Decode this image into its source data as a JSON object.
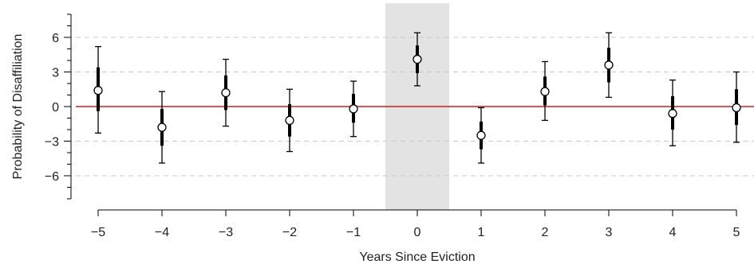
{
  "chart_data": {
    "type": "scatter",
    "title": "",
    "xlabel": "Years Since Eviction",
    "ylabel": "Probability of Disaffiliation",
    "xlim": [
      -5.3,
      5.3
    ],
    "ylim": [
      -8.6,
      8.6
    ],
    "x_ticks": [
      -5,
      -4,
      -3,
      -2,
      -1,
      0,
      1,
      2,
      3,
      4,
      5
    ],
    "x_tick_labels": [
      "−5",
      "−4",
      "−3",
      "−2",
      "−1",
      "0",
      "1",
      "2",
      "3",
      "4",
      "5"
    ],
    "y_ticks_labeled": [
      -6,
      -3,
      0,
      3,
      6
    ],
    "y_tick_labels": [
      "−6",
      "−3",
      "0",
      "3",
      "6"
    ],
    "y_ticks_minor": [
      -8,
      -7,
      -5,
      -4,
      -2,
      -1,
      1,
      2,
      4,
      5,
      7,
      8
    ],
    "grid_lines_y": [
      -6,
      -3,
      3,
      6
    ],
    "reference_line_y": 0,
    "highlight_x_range": [
      -0.5,
      0.5
    ],
    "colors": {
      "reference_line": "#cc1f1f",
      "highlight": "#e3e3e3",
      "grid": "#c8c8c8",
      "marks": "#000000"
    },
    "points": [
      {
        "x": -5,
        "y": 1.4,
        "ci95": [
          -2.3,
          5.2
        ],
        "ci90": [
          -0.4,
          3.4
        ]
      },
      {
        "x": -4,
        "y": -1.8,
        "ci95": [
          -4.9,
          1.3
        ],
        "ci90": [
          -3.4,
          -0.2
        ]
      },
      {
        "x": -3,
        "y": 1.2,
        "ci95": [
          -1.7,
          4.1
        ],
        "ci90": [
          -0.3,
          2.7
        ]
      },
      {
        "x": -2,
        "y": -1.2,
        "ci95": [
          -3.9,
          1.5
        ],
        "ci90": [
          -2.6,
          0.2
        ]
      },
      {
        "x": -1,
        "y": -0.2,
        "ci95": [
          -2.6,
          2.2
        ],
        "ci90": [
          -1.4,
          1.1
        ]
      },
      {
        "x": 0,
        "y": 4.1,
        "ci95": [
          1.8,
          6.4
        ],
        "ci90": [
          2.9,
          5.3
        ]
      },
      {
        "x": 1,
        "y": -2.5,
        "ci95": [
          -4.9,
          -0.1
        ],
        "ci90": [
          -3.7,
          -1.3
        ]
      },
      {
        "x": 2,
        "y": 1.3,
        "ci95": [
          -1.2,
          3.9
        ],
        "ci90": [
          0.1,
          2.6
        ]
      },
      {
        "x": 3,
        "y": 3.6,
        "ci95": [
          0.8,
          6.4
        ],
        "ci90": [
          2.1,
          5.1
        ]
      },
      {
        "x": 4,
        "y": -0.6,
        "ci95": [
          -3.4,
          2.3
        ],
        "ci90": [
          -2.0,
          0.9
        ]
      },
      {
        "x": 5,
        "y": -0.1,
        "ci95": [
          -3.1,
          3.0
        ],
        "ci90": [
          -1.6,
          1.5
        ]
      }
    ]
  }
}
